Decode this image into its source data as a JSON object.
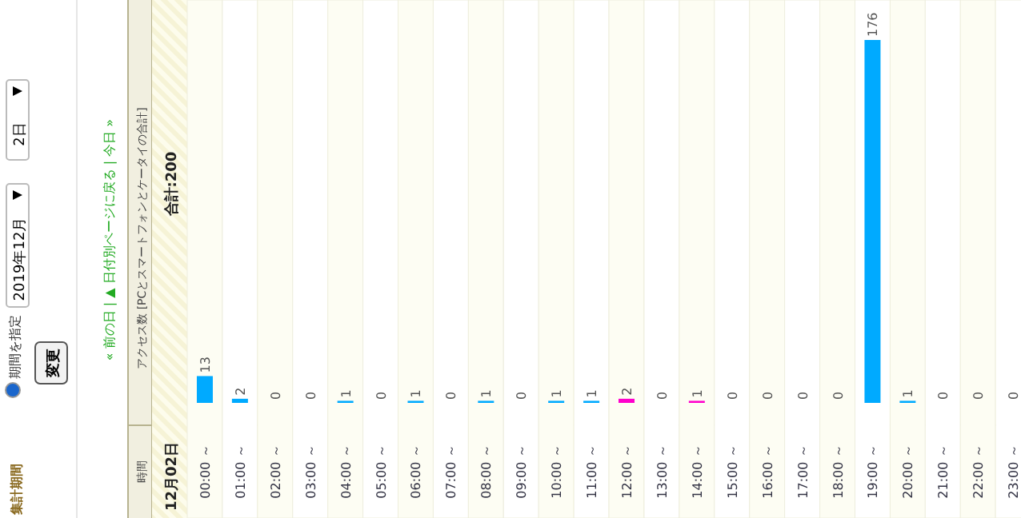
{
  "chart_data": {
    "type": "bar",
    "title": "アクセス数 [PCとスマートフォンとケータイの合計]",
    "subtitle": "12月02日",
    "categories": [
      "00:00 ～",
      "01:00 ～",
      "02:00 ～",
      "03:00 ～",
      "04:00 ～",
      "05:00 ～",
      "06:00 ～",
      "07:00 ～",
      "08:00 ～",
      "09:00 ～",
      "10:00 ～",
      "11:00 ～",
      "12:00 ～",
      "13:00 ～",
      "14:00 ～",
      "15:00 ～",
      "16:00 ～",
      "17:00 ～",
      "18:00 ～",
      "19:00 ～",
      "20:00 ～",
      "21:00 ～",
      "22:00 ～",
      "23:00 ～"
    ],
    "values": [
      13,
      2,
      0,
      0,
      1,
      0,
      1,
      0,
      1,
      0,
      1,
      1,
      2,
      0,
      1,
      0,
      0,
      0,
      0,
      176,
      1,
      0,
      0,
      0
    ],
    "colors": [
      "#00aaff",
      "#00aaff",
      "#00aaff",
      "#00aaff",
      "#00aaff",
      "#00aaff",
      "#00aaff",
      "#00aaff",
      "#00aaff",
      "#00aaff",
      "#00aaff",
      "#00aaff",
      "#ff00cc",
      "#00aaff",
      "#ff00cc",
      "#00aaff",
      "#00aaff",
      "#00aaff",
      "#00aaff",
      "#00aaff",
      "#00aaff",
      "#00aaff",
      "#00aaff",
      "#00aaff"
    ],
    "data_labels": true,
    "annotations": [
      "時間",
      "合計:200",
      "« 前の日 | ▲ 日付別ページに戻る | 今日 »",
      "集計期間",
      "期間を指定",
      "2019年12月",
      "2日",
      "変更"
    ]
  }
}
